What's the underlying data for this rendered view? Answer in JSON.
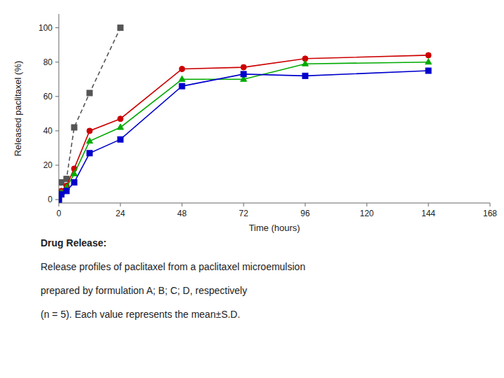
{
  "chart_data": {
    "type": "line",
    "xlabel": "Time (hours)",
    "ylabel": "Released paclitaxel (%)",
    "x": [
      0,
      1,
      3,
      6,
      12,
      24,
      48,
      72,
      96,
      144
    ],
    "series": [
      {
        "color": "#555555",
        "line_style": "dashed",
        "marker": "square",
        "values": [
          0,
          10,
          12,
          42,
          62,
          100,
          null,
          null,
          null,
          null
        ]
      },
      {
        "color": "#cc0000",
        "line_style": "solid",
        "marker": "circle",
        "values": [
          0,
          5,
          8,
          18,
          40,
          47,
          76,
          77,
          82,
          84
        ]
      },
      {
        "color": "#00aa00",
        "line_style": "solid",
        "marker": "triangle",
        "values": [
          0,
          4,
          7,
          15,
          34,
          42,
          70,
          70,
          79,
          80
        ]
      },
      {
        "color": "#0000cc",
        "line_style": "solid",
        "marker": "square",
        "values": [
          0,
          3,
          5,
          10,
          27,
          35,
          66,
          73,
          72,
          75
        ]
      }
    ],
    "xlim": [
      0,
      168
    ],
    "ylim": [
      -2,
      108
    ],
    "xticks": [
      0,
      24,
      48,
      72,
      96,
      120,
      144,
      168
    ],
    "yticks": [
      0,
      20,
      40,
      60,
      80,
      100
    ],
    "grid": false,
    "annotations": [
      "Drug Release:",
      "Release profiles of paclitaxel from a paclitaxel microemulsion",
      "prepared by formulation A; B; C; D, respectively",
      "(n = 5). Each value represents the mean±S.D."
    ]
  }
}
